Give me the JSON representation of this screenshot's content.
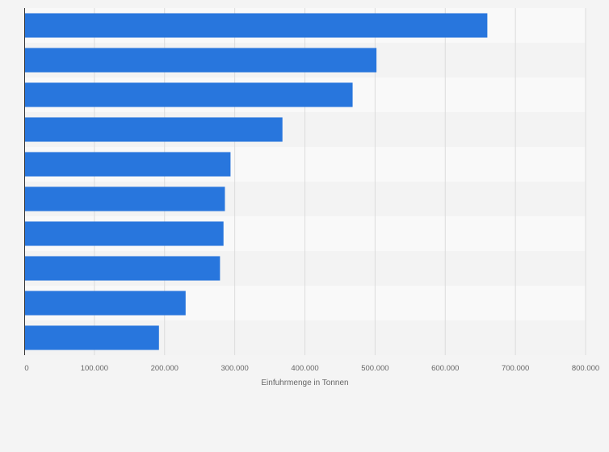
{
  "chart_data": {
    "type": "bar",
    "orientation": "horizontal",
    "title": "",
    "xlabel": "Einfuhrmenge in Tonnen",
    "ylabel": "",
    "categories": [
      "",
      "",
      "",
      "",
      "",
      "",
      "",
      "",
      "",
      ""
    ],
    "values": [
      660000,
      502000,
      468000,
      368000,
      294000,
      286000,
      284000,
      279000,
      230000,
      192000
    ],
    "xlim": [
      0,
      800000
    ],
    "x_ticks": [
      0,
      100000,
      200000,
      300000,
      400000,
      500000,
      600000,
      700000,
      800000
    ],
    "x_tick_labels": [
      "0",
      "100.000",
      "200.000",
      "300.000",
      "400.000",
      "500.000",
      "600.000",
      "700.000",
      "800.000"
    ],
    "grid": true,
    "legend": "none",
    "colors": {
      "bar": "#2876dd",
      "background": "#f4f4f4",
      "band_light": "#f9f9f9",
      "band_dark": "#f3f3f3",
      "gridline": "#dcdcdc",
      "axis": "#333333",
      "text": "#666666"
    }
  }
}
